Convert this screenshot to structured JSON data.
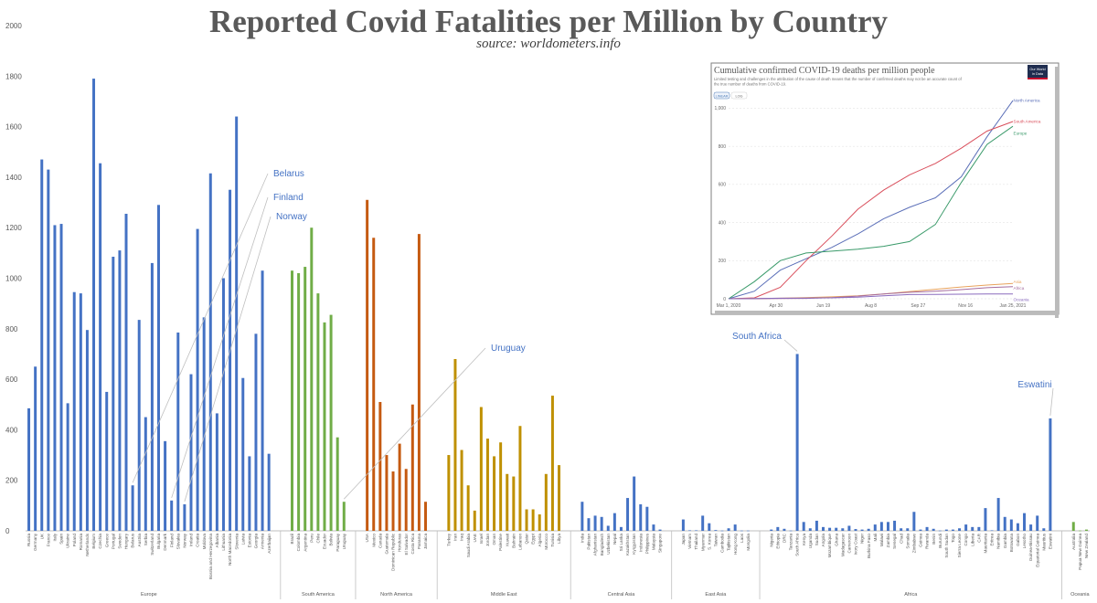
{
  "header": {
    "title": "Reported Covid Fatalities per Million by Country",
    "subtitle": "source: worldometers.info"
  },
  "chart_data": [
    {
      "type": "bar",
      "ylim": [
        0,
        2000
      ],
      "yticks": [
        0,
        200,
        400,
        600,
        800,
        1000,
        1200,
        1400,
        1600,
        1800,
        2000
      ],
      "grid": false,
      "regions": [
        {
          "name": "Europe",
          "color": "#4472C4",
          "countries": [
            "Russia",
            "Germany",
            "UK",
            "France",
            "Italy",
            "Spain",
            "Ukraine",
            "Poland",
            "Romania",
            "Netherlands",
            "Belgium",
            "Czechia",
            "Greece",
            "Portugal",
            "Sweden",
            "Hungary",
            "Belarus",
            "Austria",
            "Serbia",
            "Switzerland",
            "Bulgaria",
            "Denmark",
            "Finland",
            "Slovakia",
            "Norway",
            "Ireland",
            "Croatia",
            "Moldova",
            "Bosnia and Herzegovina",
            "Albania",
            "Lithuania",
            "North Macedonia",
            "Slovenia",
            "Latvia",
            "Estonia",
            "Georgia",
            "Armenia",
            "Azerbaijan"
          ],
          "values": [
            485,
            650,
            1470,
            1430,
            1210,
            1215,
            505,
            945,
            940,
            795,
            1790,
            1455,
            550,
            1085,
            1110,
            1255,
            180,
            835,
            450,
            1060,
            1290,
            355,
            120,
            785,
            105,
            620,
            1195,
            845,
            1415,
            465,
            1000,
            1350,
            1640,
            605,
            295,
            780,
            1030,
            305
          ]
        },
        {
          "name": "South America",
          "color": "#70AD47",
          "countries": [
            "Brazil",
            "Colombia",
            "Argentina",
            "Peru",
            "Chile",
            "Ecuador",
            "Bolivia",
            "Paraguay",
            "Uruguay"
          ],
          "values": [
            1030,
            1020,
            1045,
            1200,
            940,
            825,
            855,
            370,
            115
          ]
        },
        {
          "name": "North America",
          "color": "#C55A11",
          "countries": [
            "USA",
            "Mexico",
            "Canada",
            "Guatemala",
            "Dominican Republic",
            "Honduras",
            "El Salvador",
            "Costa Rica",
            "Panama",
            "Jamaica"
          ],
          "values": [
            1310,
            1160,
            510,
            300,
            235,
            345,
            245,
            500,
            1175,
            115
          ]
        },
        {
          "name": "Middle East",
          "color": "#BF9000",
          "countries": [
            "Turkey",
            "Iran",
            "Iraq",
            "Saudi Arabia",
            "UAE",
            "Israel",
            "Jordan",
            "Oman",
            "Palestine",
            "Kuwait",
            "Bahrain",
            "Lebanon",
            "Qatar",
            "Egypt",
            "Algeria",
            "Morocco",
            "Tunisia",
            "Libya"
          ],
          "values": [
            300,
            680,
            320,
            180,
            80,
            490,
            365,
            295,
            350,
            225,
            215,
            415,
            85,
            85,
            65,
            225,
            535,
            260
          ]
        },
        {
          "name": "Central Asia",
          "color": "#4472C4",
          "countries": [
            "India",
            "Pakistan",
            "Afghanistan",
            "Bangladesh",
            "Uzbekistan",
            "Nepal",
            "Sri Lanka",
            "Kazakhstan",
            "Kyrgyzstan",
            "Indonesia",
            "Philippines",
            "Malaysia",
            "Singapore"
          ],
          "values": [
            115,
            50,
            60,
            55,
            20,
            70,
            15,
            130,
            215,
            105,
            95,
            25,
            5
          ]
        },
        {
          "name": "East Asia",
          "color": "#4472C4",
          "countries": [
            "Japan",
            "Vietnam",
            "Thailand",
            "Myanmar",
            "S. Korea",
            "Taiwan",
            "Cambodia",
            "Tajikistan",
            "Hong Kong",
            "Laos",
            "Mongolia"
          ],
          "values": [
            45,
            2,
            2,
            60,
            30,
            3,
            1,
            10,
            25,
            1,
            1
          ]
        },
        {
          "name": "Africa",
          "color": "#4472C4",
          "countries": [
            "Nigeria",
            "Ethiopia",
            "DRC",
            "Tanzania",
            "South Africa",
            "Kenya",
            "Uganda",
            "Sudan",
            "Angola",
            "Mozambique",
            "Ghana",
            "Madagascar",
            "Cameroon",
            "Ivory Coast",
            "Niger",
            "Burkina Faso",
            "Mali",
            "Malawi",
            "Zambia",
            "Senegal",
            "Chad",
            "Somalia",
            "Zimbabwe",
            "Guinea",
            "Rwanda",
            "Benin",
            "Burundi",
            "South Sudan",
            "Togo",
            "Sierra Leone",
            "Congo",
            "Liberia",
            "CAR",
            "Mauritania",
            "Eritrea",
            "Namibia",
            "Gambia",
            "Botswana",
            "Gabon",
            "Lesotho",
            "Guinea-Bissau",
            "Equatorial Guinea",
            "Mauritius",
            "Eswatini"
          ],
          "values": [
            5,
            15,
            8,
            1,
            700,
            35,
            10,
            40,
            15,
            12,
            12,
            10,
            20,
            7,
            5,
            8,
            25,
            35,
            35,
            40,
            10,
            10,
            75,
            5,
            15,
            8,
            1,
            5,
            5,
            10,
            25,
            15,
            15,
            90,
            2,
            130,
            55,
            45,
            30,
            70,
            25,
            60,
            10,
            445
          ]
        },
        {
          "name": "Oceania",
          "color": "#70AD47",
          "countries": [
            "Australia",
            "Papua New Guinea",
            "New Zealand"
          ],
          "values": [
            35,
            1,
            5
          ]
        }
      ],
      "annotations": [
        {
          "text": "Belarus"
        },
        {
          "text": "Finland"
        },
        {
          "text": "Norway"
        },
        {
          "text": "Uruguay"
        },
        {
          "text": "South  Africa"
        },
        {
          "text": "Eswatini"
        }
      ]
    },
    {
      "type": "line",
      "title": "Cumulative confirmed COVID-19 deaths per million people",
      "subtitle": "Limited testing and challenges in the attribution of the cause of death means that the number of confirmed deaths may not be an accurate count of the true number of deaths from COVID-19.",
      "logo": "Our World in Data",
      "scale_buttons": [
        "LINEAR",
        "LOG"
      ],
      "active_scale": "LINEAR",
      "ylim": [
        0,
        1050
      ],
      "yticks": [
        "0",
        "200",
        "400",
        "600",
        "800",
        "1,000"
      ],
      "xticks": [
        "Mar 1, 2020",
        "Apr 30",
        "Jun 19",
        "Aug 8",
        "Sep 27",
        "Nov 16",
        "Jan 25, 2021"
      ],
      "x": [
        "Mar 1, 2020",
        "Apr 1",
        "May 1",
        "Jun 1",
        "Jul 1",
        "Aug 1",
        "Sep 1",
        "Oct 1",
        "Nov 1",
        "Dec 1",
        "Jan 1, 2021",
        "Jan 25, 2021"
      ],
      "series": [
        {
          "name": "North America",
          "color": "#5B6FB8",
          "values": [
            0,
            40,
            150,
            210,
            270,
            340,
            420,
            480,
            530,
            640,
            850,
            1040
          ]
        },
        {
          "name": "South America",
          "color": "#D94F5C",
          "values": [
            0,
            5,
            60,
            200,
            330,
            470,
            570,
            650,
            710,
            790,
            880,
            930
          ]
        },
        {
          "name": "Europe",
          "color": "#3A9A6A",
          "values": [
            0,
            90,
            200,
            240,
            250,
            260,
            275,
            300,
            390,
            610,
            810,
            905
          ]
        },
        {
          "name": "Asia",
          "color": "#E8A25C",
          "values": [
            0,
            1,
            3,
            6,
            10,
            16,
            25,
            38,
            50,
            62,
            72,
            80
          ]
        },
        {
          "name": "Africa",
          "color": "#A56C9E",
          "values": [
            0,
            0,
            1,
            2,
            6,
            14,
            25,
            34,
            40,
            48,
            58,
            64
          ]
        },
        {
          "name": "Oceania",
          "color": "#8A6BBE",
          "values": [
            0,
            1,
            3,
            4,
            5,
            8,
            16,
            22,
            23,
            24,
            25,
            25
          ]
        }
      ]
    }
  ]
}
